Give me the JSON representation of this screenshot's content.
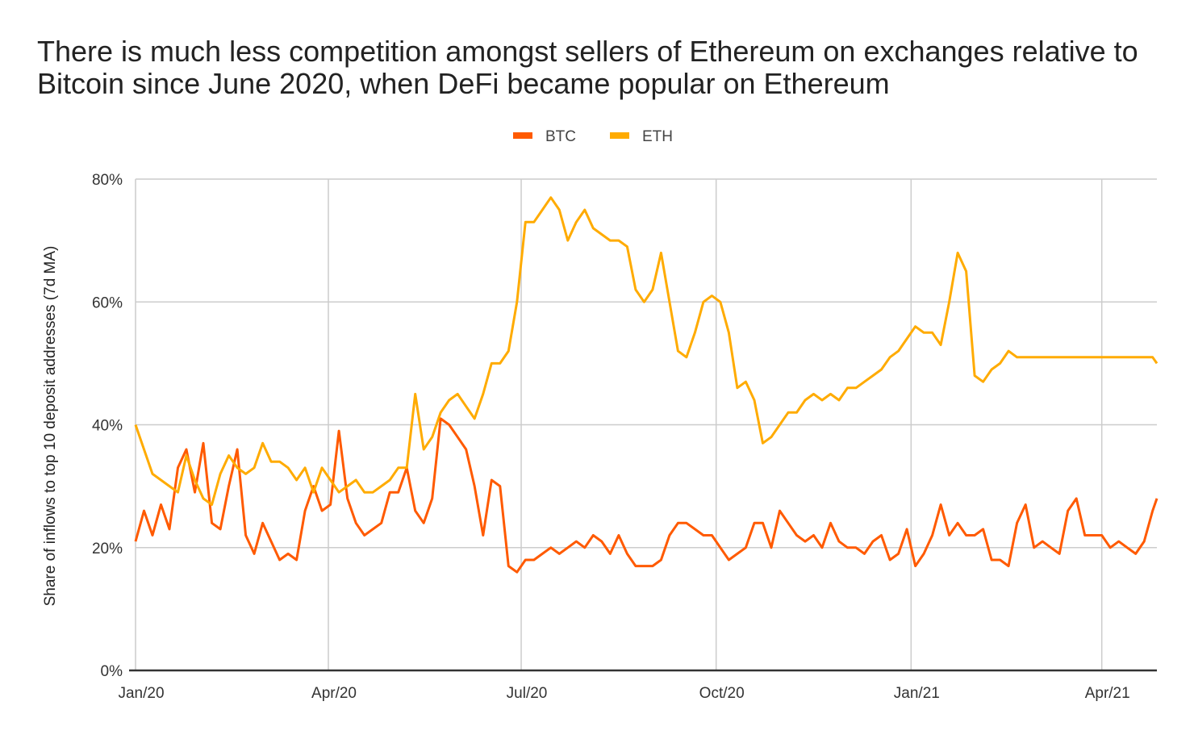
{
  "chart_data": {
    "type": "line",
    "title": "There is much less competition amongst sellers of Ethereum on exchanges relative to Bitcoin since June 2020, when DeFi became popular on Ethereum",
    "xlabel": "",
    "ylabel": "Share of inflows to top 10 deposit addresses (7d MA)",
    "ylim": [
      0,
      80
    ],
    "yticks": [
      "0%",
      "20%",
      "40%",
      "60%",
      "80%"
    ],
    "ytick_values": [
      0,
      20,
      40,
      60,
      80
    ],
    "xticks": [
      "Jan/20",
      "Apr/20",
      "Jul/20",
      "Oct/20",
      "Jan/21",
      "Apr/21"
    ],
    "xtick_days": [
      0,
      91,
      182,
      274,
      366,
      456
    ],
    "xlim_days": [
      0,
      482
    ],
    "x_unit": "days since 2020-01-01",
    "grid": true,
    "legend": "top-center",
    "x": [
      0,
      4,
      8,
      12,
      16,
      20,
      24,
      28,
      32,
      36,
      40,
      44,
      48,
      52,
      56,
      60,
      64,
      68,
      72,
      76,
      80,
      84,
      88,
      92,
      96,
      100,
      104,
      108,
      112,
      116,
      120,
      124,
      128,
      132,
      136,
      140,
      144,
      148,
      152,
      156,
      160,
      164,
      168,
      172,
      176,
      180,
      184,
      188,
      192,
      196,
      200,
      204,
      208,
      212,
      216,
      220,
      224,
      228,
      232,
      236,
      240,
      244,
      248,
      252,
      256,
      260,
      264,
      268,
      272,
      276,
      280,
      284,
      288,
      292,
      296,
      300,
      304,
      308,
      312,
      316,
      320,
      324,
      328,
      332,
      336,
      340,
      344,
      348,
      352,
      356,
      360,
      364,
      368,
      372,
      376,
      380,
      384,
      388,
      392,
      396,
      400,
      404,
      408,
      412,
      416,
      420,
      424,
      428,
      432,
      436,
      440,
      444,
      448,
      452,
      456,
      460,
      464,
      468,
      472,
      476,
      480,
      482
    ],
    "series": [
      {
        "name": "BTC",
        "color": "#FF5A00",
        "values": [
          21,
          26,
          22,
          27,
          23,
          33,
          36,
          29,
          37,
          24,
          23,
          30,
          36,
          22,
          19,
          24,
          21,
          18,
          19,
          18,
          26,
          30,
          26,
          27,
          39,
          28,
          24,
          22,
          23,
          24,
          29,
          29,
          33,
          26,
          24,
          28,
          41,
          40,
          38,
          36,
          30,
          22,
          31,
          30,
          17,
          16,
          18,
          18,
          19,
          20,
          19,
          20,
          21,
          20,
          22,
          21,
          19,
          22,
          19,
          17,
          17,
          17,
          18,
          22,
          24,
          24,
          23,
          22,
          22,
          20,
          18,
          19,
          20,
          24,
          24,
          20,
          26,
          24,
          22,
          21,
          22,
          20,
          24,
          21,
          20,
          20,
          19,
          21,
          22,
          18,
          19,
          23,
          17,
          19,
          22,
          27,
          22,
          24,
          22,
          22,
          23,
          18,
          18,
          17,
          24,
          27,
          20,
          21,
          20,
          19,
          26,
          28,
          22,
          22,
          22,
          20,
          21,
          20,
          19,
          21,
          26,
          28
        ],
        "label_color": "#FF5A00"
      },
      {
        "name": "ETH",
        "color": "#FFAB00",
        "values": [
          40,
          36,
          32,
          31,
          30,
          29,
          35,
          31,
          28,
          27,
          32,
          35,
          33,
          32,
          33,
          37,
          34,
          34,
          33,
          31,
          33,
          29,
          33,
          31,
          29,
          30,
          31,
          29,
          29,
          30,
          31,
          33,
          33,
          45,
          36,
          38,
          42,
          44,
          45,
          43,
          41,
          45,
          50,
          50,
          52,
          60,
          73,
          73,
          75,
          77,
          75,
          70,
          73,
          75,
          72,
          71,
          70,
          70,
          69,
          62,
          60,
          62,
          68,
          60,
          52,
          51,
          55,
          60,
          61,
          60,
          55,
          46,
          47,
          44,
          37,
          38,
          40,
          42,
          42,
          44,
          45,
          44,
          45,
          44,
          46,
          46,
          47,
          48,
          49,
          51,
          52,
          54,
          56,
          55,
          55,
          53,
          60,
          68,
          65,
          48,
          47,
          49,
          50,
          52,
          51,
          51,
          51,
          51,
          51,
          51,
          51,
          51,
          51,
          51,
          51,
          51,
          51,
          51,
          51,
          51,
          51,
          50
        ]
      }
    ]
  },
  "legend": {
    "items": [
      {
        "label": "BTC",
        "color": "#FF5A00"
      },
      {
        "label": "ETH",
        "color": "#FFAB00"
      }
    ]
  },
  "colors": {
    "grid": "#CCCCCC",
    "axis": "#333333",
    "text": "#222222"
  }
}
